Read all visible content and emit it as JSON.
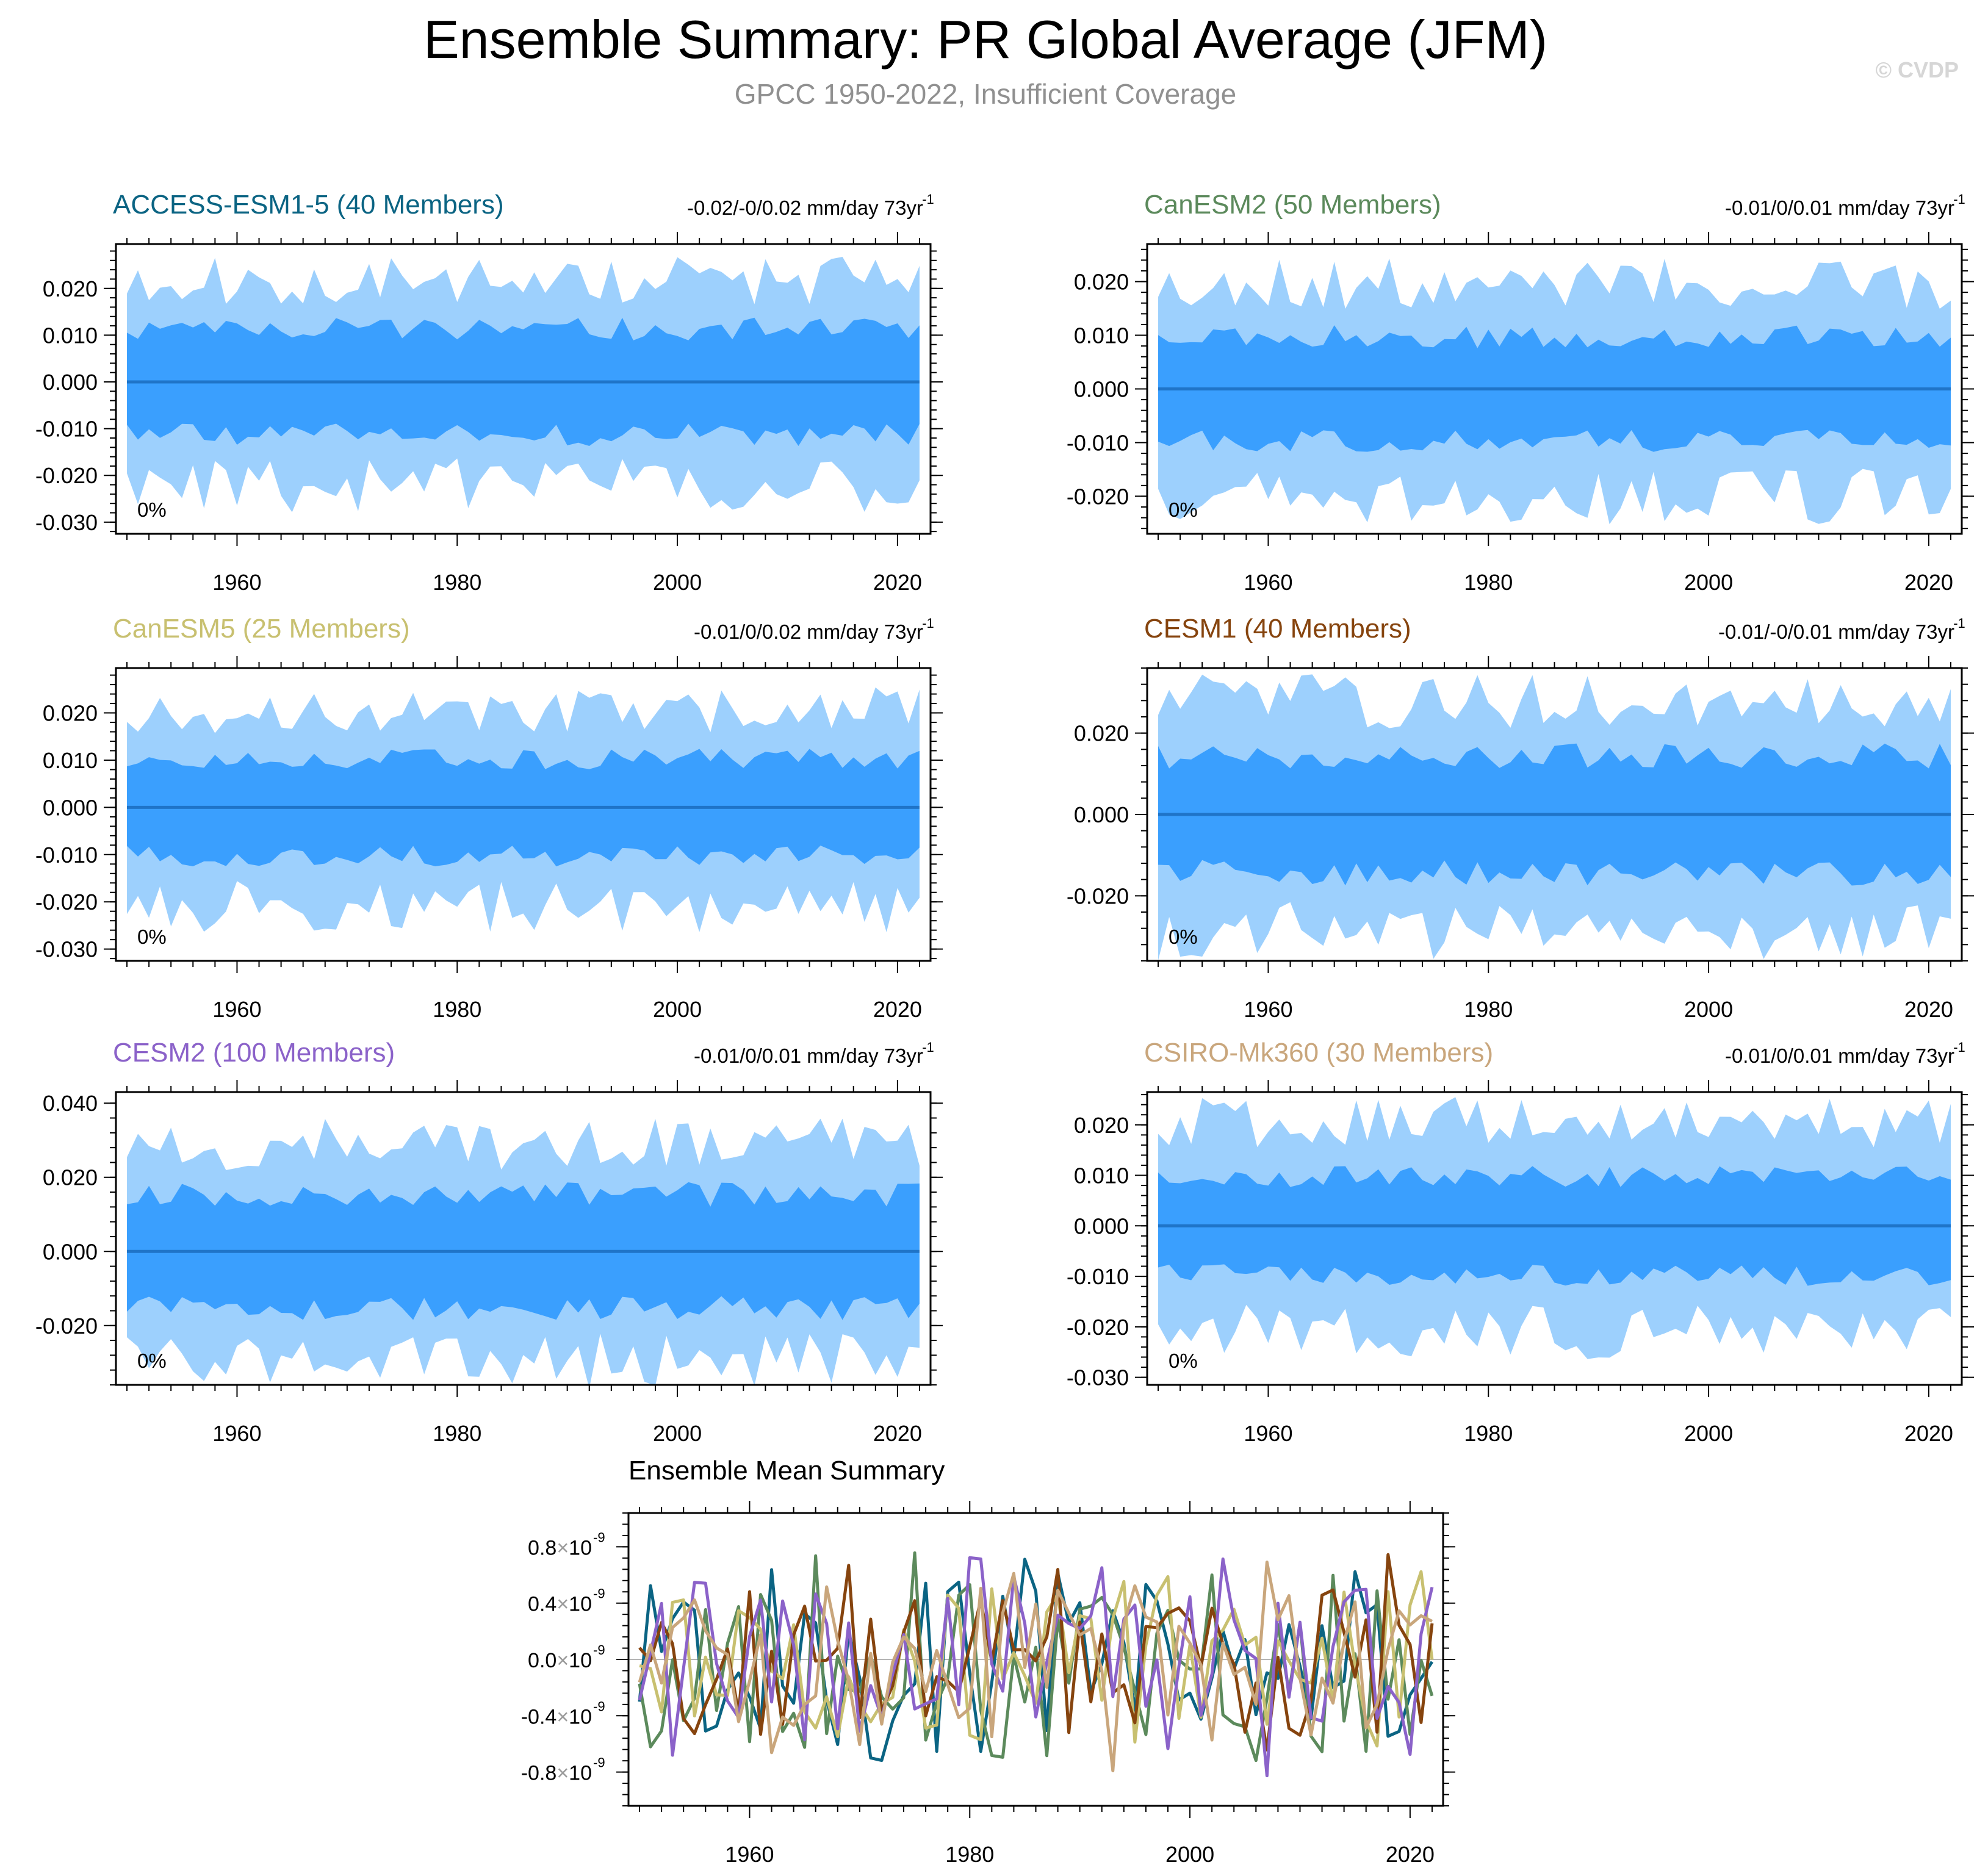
{
  "header": {
    "title": "Ensemble Summary: PR Global Average (JFM)",
    "subtitle": "GPCC 1950-2022, Insufficient Coverage",
    "watermark": "© CVDP"
  },
  "colors": {
    "outer_band": "#9dd0fd",
    "inner_band": "#3a9ffe",
    "mean_line": "#1f74c8",
    "axis": "#000000",
    "subtitle": "#909090"
  },
  "chart_data": [
    {
      "type": "area",
      "title": "ACCESS-ESM1-5 (40 Members)",
      "title_color": "#0b6483",
      "trend_label": "-0.02/-0/0.02 mm/day 73yr",
      "trend_sup": "-1",
      "coverage_label": "0%",
      "x_start": 1950,
      "x_end": 2022,
      "xlim": [
        1949,
        2023
      ],
      "ylim": [
        -0.0325,
        0.0295
      ],
      "xticks": [
        1960,
        1980,
        2000,
        2020
      ],
      "yticks": [
        0.02,
        0.01,
        0.0,
        -0.01,
        -0.02,
        -0.03
      ],
      "ytick_labels": [
        "0.020",
        "0.010",
        "0.000",
        "-0.010",
        "-0.020",
        "-0.030"
      ],
      "mean": 0.0,
      "seed": 11,
      "outer_amp": 0.021,
      "inner_amp": 0.011
    },
    {
      "type": "area",
      "title": "CanESM2 (50 Members)",
      "title_color": "#5c8a5c",
      "trend_label": "-0.01/0/0.01 mm/day 73yr",
      "trend_sup": "-1",
      "coverage_label": "0%",
      "x_start": 1950,
      "x_end": 2022,
      "xlim": [
        1949,
        2023
      ],
      "ylim": [
        -0.027,
        0.027
      ],
      "xticks": [
        1960,
        1980,
        2000,
        2020
      ],
      "yticks": [
        0.02,
        0.01,
        0.0,
        -0.01,
        -0.02
      ],
      "ytick_labels": [
        "0.020",
        "0.010",
        "0.000",
        "-0.010",
        "-0.020"
      ],
      "mean": 0.0,
      "seed": 23,
      "outer_amp": 0.019,
      "inner_amp": 0.0095
    },
    {
      "type": "area",
      "title": "CanESM5 (25 Members)",
      "title_color": "#c8c070",
      "trend_label": "-0.01/0/0.02 mm/day 73yr",
      "trend_sup": "-1",
      "coverage_label": "0%",
      "x_start": 1950,
      "x_end": 2022,
      "xlim": [
        1949,
        2023
      ],
      "ylim": [
        -0.0325,
        0.0295
      ],
      "xticks": [
        1960,
        1980,
        2000,
        2020
      ],
      "yticks": [
        0.02,
        0.01,
        0.0,
        -0.01,
        -0.02,
        -0.03
      ],
      "ytick_labels": [
        "0.020",
        "0.010",
        "0.000",
        "-0.010",
        "-0.020",
        "-0.030"
      ],
      "mean": 0.0,
      "seed": 37,
      "outer_amp": 0.02,
      "inner_amp": 0.01
    },
    {
      "type": "area",
      "title": "CESM1 (40 Members)",
      "title_color": "#86440e",
      "trend_label": "-0.01/-0/0.01 mm/day 73yr",
      "trend_sup": "-1",
      "coverage_label": "0%",
      "x_start": 1950,
      "x_end": 2022,
      "xlim": [
        1949,
        2023
      ],
      "ylim": [
        -0.036,
        0.036
      ],
      "xticks": [
        1960,
        1980,
        2000,
        2020
      ],
      "yticks": [
        0.02,
        0.0,
        -0.02
      ],
      "ytick_labels": [
        "0.020",
        "0.000",
        "-0.020"
      ],
      "mean": 0.0,
      "seed": 41,
      "outer_amp": 0.027,
      "inner_amp": 0.014
    },
    {
      "type": "area",
      "title": "CESM2 (100 Members)",
      "title_color": "#8b62c9",
      "trend_label": "-0.01/0/0.01 mm/day 73yr",
      "trend_sup": "-1",
      "coverage_label": "0%",
      "x_start": 1950,
      "x_end": 2022,
      "xlim": [
        1949,
        2023
      ],
      "ylim": [
        -0.036,
        0.043
      ],
      "xticks": [
        1960,
        1980,
        2000,
        2020
      ],
      "yticks": [
        0.04,
        0.02,
        0.0,
        -0.02
      ],
      "ytick_labels": [
        "0.040",
        "0.020",
        "0.000",
        "-0.020"
      ],
      "mean": 0.0,
      "seed": 53,
      "outer_amp": 0.028,
      "inner_amp": 0.015
    },
    {
      "type": "area",
      "title": "CSIRO-Mk360 (30 Members)",
      "title_color": "#c9a67c",
      "trend_label": "-0.01/0/0.01 mm/day 73yr",
      "trend_sup": "-1",
      "coverage_label": "0%",
      "x_start": 1950,
      "x_end": 2022,
      "xlim": [
        1949,
        2023
      ],
      "ylim": [
        -0.0315,
        0.0265
      ],
      "xticks": [
        1960,
        1980,
        2000,
        2020
      ],
      "yticks": [
        0.02,
        0.01,
        0.0,
        -0.01,
        -0.02,
        -0.03
      ],
      "ytick_labels": [
        "0.020",
        "0.010",
        "0.000",
        "-0.010",
        "-0.020",
        "-0.030"
      ],
      "mean": 0.0,
      "seed": 67,
      "outer_amp": 0.02,
      "inner_amp": 0.0095
    },
    {
      "type": "line",
      "title": "Ensemble Mean Summary",
      "x_start": 1950,
      "x_end": 2022,
      "xlim": [
        1949,
        2023
      ],
      "ylim": [
        -1.04,
        1.04
      ],
      "xticks": [
        1960,
        1980,
        2000,
        2020
      ],
      "yticks": [
        0.8,
        0.4,
        0.0,
        -0.4,
        -0.8
      ],
      "ytick_labels": [
        "0.8",
        "0.4",
        "0.0",
        "-0.4",
        "-0.8"
      ],
      "ytick_suffix": "×10",
      "ytick_exp": "-9",
      "series": [
        {
          "name": "ACCESS-ESM1-5",
          "color": "#0b6483",
          "seed": 101
        },
        {
          "name": "CanESM2",
          "color": "#5c8a5c",
          "seed": 202
        },
        {
          "name": "CanESM5",
          "color": "#c8c070",
          "seed": 303
        },
        {
          "name": "CESM1",
          "color": "#86440e",
          "seed": 404
        },
        {
          "name": "CESM2",
          "color": "#8b62c9",
          "seed": 505
        },
        {
          "name": "CSIRO-Mk360",
          "color": "#c9a67c",
          "seed": 606
        }
      ]
    }
  ]
}
